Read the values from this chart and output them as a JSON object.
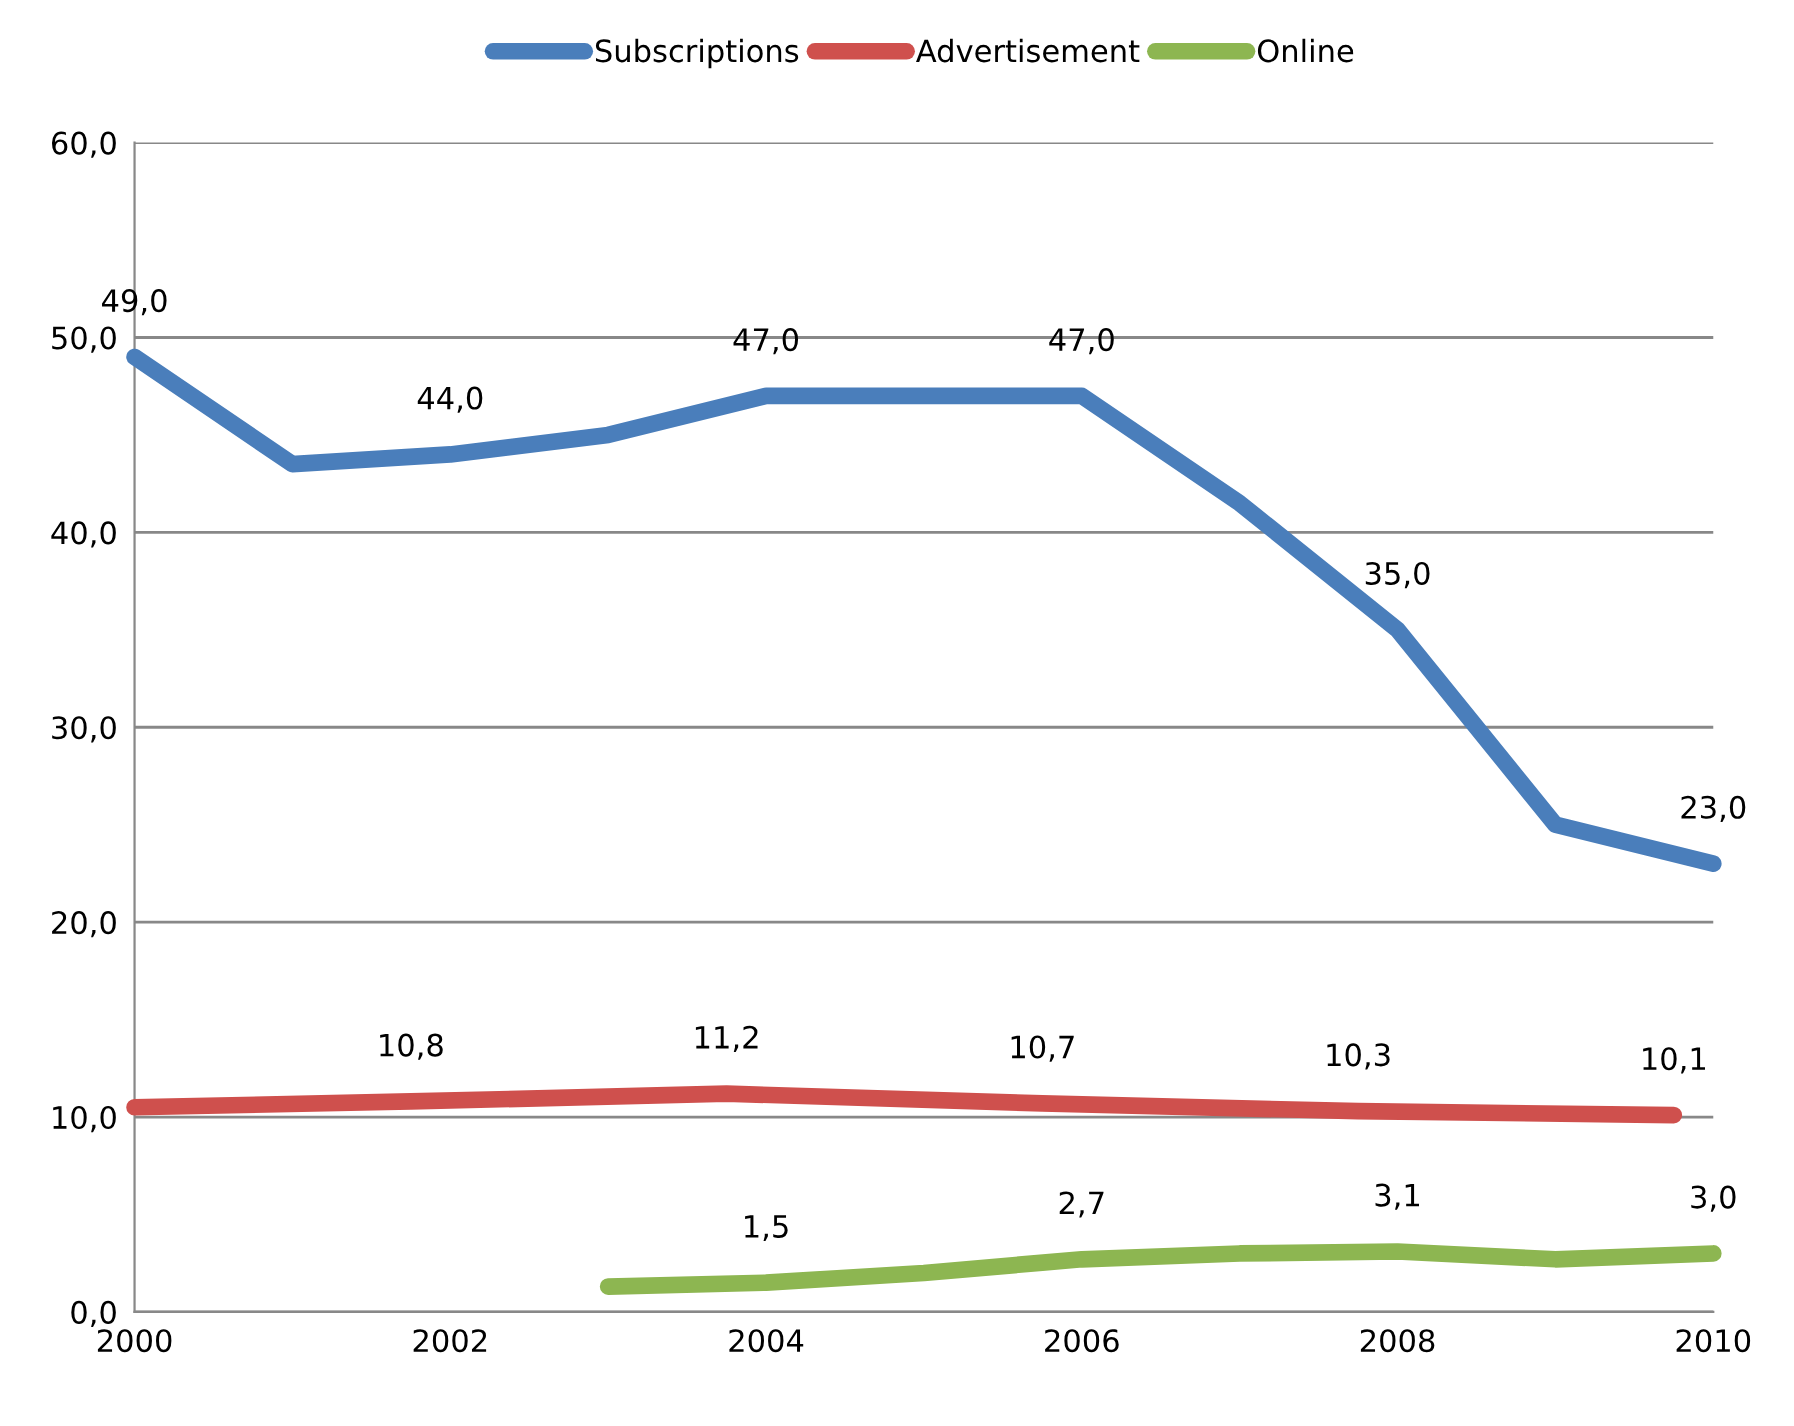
{
  "chart_data": {
    "type": "line",
    "x": [
      2000,
      2001,
      2002,
      2003,
      2004,
      2005,
      2006,
      2007,
      2008,
      2009,
      2010
    ],
    "series": [
      {
        "name": "Subscriptions",
        "color": "#4a7ebb",
        "values": [
          49.0,
          43.5,
          44.0,
          45.0,
          47.0,
          47.0,
          47.0,
          41.5,
          35.0,
          25.0,
          23.0
        ],
        "value_labels": [
          "49,0",
          null,
          "44,0",
          null,
          "47,0",
          null,
          "47,0",
          null,
          "35,0",
          null,
          "23,0"
        ]
      },
      {
        "name": "Advertisement",
        "color": "#cf504d",
        "x": [
          2000,
          2001.75,
          2003.75,
          2005.75,
          2007.75,
          2009.75
        ],
        "values": [
          10.5,
          10.8,
          11.2,
          10.7,
          10.3,
          10.1
        ],
        "value_labels": [
          null,
          "10,8",
          "11,2",
          "10,7",
          "10,3",
          "10,1"
        ]
      },
      {
        "name": "Online",
        "color": "#8db651",
        "x": [
          2003,
          2004,
          2005,
          2006,
          2007,
          2008,
          2009,
          2010
        ],
        "values": [
          1.3,
          1.5,
          2.0,
          2.7,
          3.0,
          3.1,
          2.7,
          3.0
        ],
        "value_labels": [
          null,
          "1,5",
          null,
          "2,7",
          null,
          "3,1",
          null,
          "3,0"
        ]
      }
    ],
    "xlim": [
      2000,
      2010
    ],
    "xticks": [
      2000,
      2002,
      2004,
      2006,
      2008,
      2010
    ],
    "ylim": [
      0,
      60
    ],
    "yticks": [
      {
        "value": 0,
        "label": "0,0"
      },
      {
        "value": 10,
        "label": "10,0"
      },
      {
        "value": 20,
        "label": "20,0"
      },
      {
        "value": 30,
        "label": "30,0"
      },
      {
        "value": 40,
        "label": "40,0"
      },
      {
        "value": 50,
        "label": "50,0"
      },
      {
        "value": 60,
        "label": "60,0"
      }
    ],
    "grid": "y",
    "legend": "top",
    "marker": "none",
    "line_style": "solid"
  }
}
